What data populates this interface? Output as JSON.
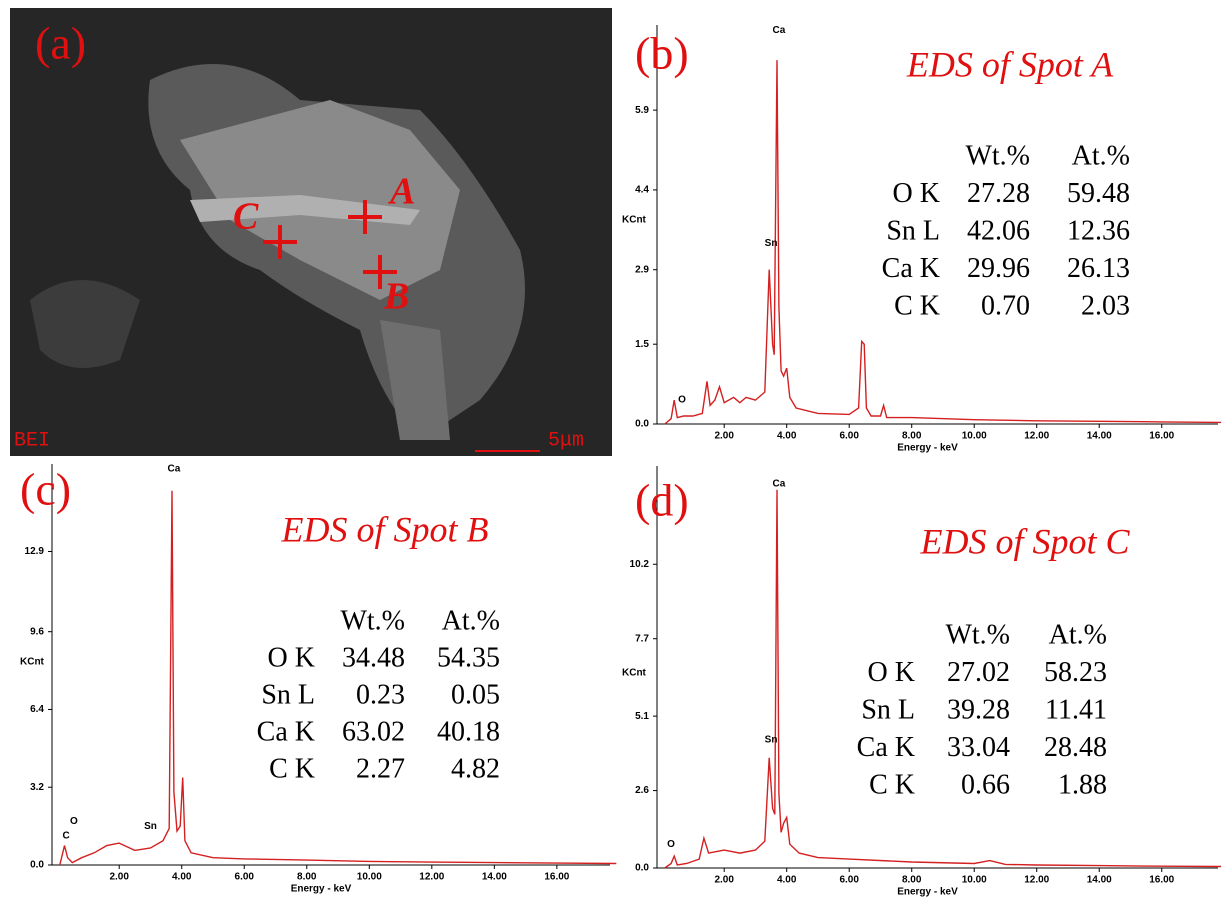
{
  "sem_image": {
    "panel_label": "(a)",
    "mode": "BEI",
    "scale_bar": "5μm",
    "spots": [
      "A",
      "B",
      "C"
    ]
  },
  "chart_data": [
    {
      "type": "line",
      "panel_label": "(b)",
      "title": "EDS of Spot A",
      "x_label": "Energy - keV",
      "y_label": "KCnt",
      "color": "#d42020",
      "xlim": [
        -0.15,
        17.8
      ],
      "ylim": [
        0,
        7.5
      ],
      "xticks": [
        {
          "value": 2,
          "label": "2.00"
        },
        {
          "value": 4,
          "label": "4.00"
        },
        {
          "value": 6,
          "label": "6.00"
        },
        {
          "value": 8,
          "label": "8.00"
        },
        {
          "value": 10,
          "label": "10.00"
        },
        {
          "value": 12,
          "label": "12.00"
        },
        {
          "value": 14,
          "label": "14.00"
        },
        {
          "value": 16,
          "label": "16.00"
        }
      ],
      "yticks": [
        {
          "value": 0,
          "label": "0.0"
        },
        1.5,
        2.9,
        4.4,
        5.9
      ],
      "x": [
        0.1,
        0.3,
        0.4,
        0.5,
        0.7,
        1.0,
        1.3,
        1.45,
        1.55,
        1.7,
        1.85,
        2.0,
        2.3,
        2.5,
        2.7,
        3.0,
        3.3,
        3.44,
        3.55,
        3.6,
        3.69,
        3.75,
        3.82,
        3.9,
        4.0,
        4.1,
        4.3,
        5.0,
        6.0,
        6.3,
        6.4,
        6.48,
        6.55,
        6.7,
        7.0,
        7.1,
        7.2,
        8,
        10,
        12,
        14,
        16,
        17.9
      ],
      "values": [
        0,
        0.1,
        0.45,
        0.12,
        0.15,
        0.15,
        0.2,
        0.8,
        0.35,
        0.45,
        0.7,
        0.4,
        0.5,
        0.4,
        0.5,
        0.45,
        0.6,
        2.9,
        1.5,
        1.3,
        6.84,
        2.2,
        1.0,
        0.9,
        1.05,
        0.5,
        0.3,
        0.2,
        0.18,
        0.3,
        1.55,
        1.5,
        0.3,
        0.15,
        0.15,
        0.35,
        0.12,
        0.12,
        0.08,
        0.06,
        0.05,
        0.04,
        0.03
      ],
      "annotations": [
        {
          "text": "Ca",
          "x": 3.75,
          "y": 7.4
        },
        {
          "text": "Sn",
          "x": 3.5,
          "y": 3.4
        },
        {
          "text": "O",
          "x": 0.65,
          "y": 0.45
        }
      ],
      "table": {
        "columns": [
          "Wt.%",
          "At.%"
        ],
        "rows": [
          [
            "O K",
            "27.28",
            "59.48"
          ],
          [
            "Sn L",
            "42.06",
            "12.36"
          ],
          [
            "Ca K",
            "29.96",
            "26.13"
          ],
          [
            "C K",
            "0.70",
            "2.03"
          ]
        ]
      }
    },
    {
      "type": "line",
      "panel_label": "(c)",
      "title": "EDS of Spot B",
      "x_label": "Energy - keV",
      "y_label": "KCnt",
      "color": "#d42020",
      "xlim": [
        -0.15,
        17.7
      ],
      "ylim": [
        0,
        16.5
      ],
      "xticks": [
        {
          "value": 2,
          "label": "2.00"
        },
        {
          "value": 4,
          "label": "4.00"
        },
        {
          "value": 6,
          "label": "6.00"
        },
        {
          "value": 8,
          "label": "8.00"
        },
        {
          "value": 10,
          "label": "10.00"
        },
        {
          "value": 12,
          "label": "12.00"
        },
        {
          "value": 14,
          "label": "14.00"
        },
        {
          "value": 16,
          "label": "16.00"
        }
      ],
      "yticks": [
        {
          "value": 0,
          "label": "0.0"
        },
        3.2,
        6.4,
        9.6,
        12.9
      ],
      "x": [
        0.1,
        0.25,
        0.35,
        0.5,
        0.8,
        1.2,
        1.6,
        2.0,
        2.5,
        3.0,
        3.4,
        3.6,
        3.69,
        3.75,
        3.85,
        3.95,
        4.03,
        4.1,
        4.3,
        5,
        6,
        8,
        10,
        12,
        14,
        16,
        17.9
      ],
      "values": [
        0,
        0.8,
        0.3,
        0.1,
        0.3,
        0.5,
        0.8,
        0.9,
        0.6,
        0.7,
        1.0,
        1.5,
        15.4,
        3.0,
        1.4,
        1.6,
        3.6,
        1.0,
        0.5,
        0.3,
        0.25,
        0.2,
        0.15,
        0.12,
        0.1,
        0.08,
        0.06
      ],
      "annotations": [
        {
          "text": "Ca",
          "x": 3.75,
          "y": 16.3
        },
        {
          "text": "Sn",
          "x": 3.0,
          "y": 1.6
        },
        {
          "text": "O",
          "x": 0.55,
          "y": 1.8
        },
        {
          "text": "C",
          "x": 0.3,
          "y": 1.2
        }
      ],
      "table": {
        "columns": [
          "Wt.%",
          "At.%"
        ],
        "rows": [
          [
            "O K",
            "34.48",
            "54.35"
          ],
          [
            "Sn L",
            "0.23",
            "0.05"
          ],
          [
            "Ca K",
            "63.02",
            "40.18"
          ],
          [
            "C K",
            "2.27",
            "4.82"
          ]
        ]
      }
    },
    {
      "type": "line",
      "panel_label": "(d)",
      "title": "EDS of Spot C",
      "x_label": "Energy - keV",
      "y_label": "KCnt",
      "color": "#d42020",
      "xlim": [
        -0.15,
        17.8
      ],
      "ylim": [
        0,
        13.5
      ],
      "xticks": [
        {
          "value": 2,
          "label": "2.00"
        },
        {
          "value": 4,
          "label": "4.00"
        },
        {
          "value": 6,
          "label": "6.00"
        },
        {
          "value": 8,
          "label": "8.00"
        },
        {
          "value": 10,
          "label": "10.00"
        },
        {
          "value": 12,
          "label": "12.00"
        },
        {
          "value": 14,
          "label": "14.00"
        },
        {
          "value": 16,
          "label": "16.00"
        }
      ],
      "yticks": [
        {
          "value": 0,
          "label": "0.0"
        },
        2.6,
        5.1,
        7.7,
        10.2
      ],
      "x": [
        0.1,
        0.3,
        0.4,
        0.5,
        0.8,
        1.2,
        1.35,
        1.5,
        2.0,
        2.5,
        3.0,
        3.3,
        3.44,
        3.55,
        3.62,
        3.69,
        3.75,
        3.82,
        3.9,
        4.0,
        4.1,
        4.4,
        5,
        6,
        8,
        10,
        10.5,
        11,
        12,
        14,
        16,
        17.9
      ],
      "values": [
        0,
        0.15,
        0.4,
        0.1,
        0.15,
        0.3,
        1.0,
        0.5,
        0.6,
        0.5,
        0.6,
        0.9,
        3.7,
        2.0,
        1.8,
        12.7,
        2.5,
        1.2,
        1.5,
        1.7,
        0.8,
        0.5,
        0.35,
        0.3,
        0.2,
        0.15,
        0.25,
        0.12,
        0.1,
        0.08,
        0.06,
        0.05
      ],
      "annotations": [
        {
          "text": "Ca",
          "x": 3.75,
          "y": 12.9
        },
        {
          "text": "Sn",
          "x": 3.5,
          "y": 4.3
        },
        {
          "text": "O",
          "x": 0.3,
          "y": 0.8
        }
      ],
      "table": {
        "columns": [
          "Wt.%",
          "At.%"
        ],
        "rows": [
          [
            "O K",
            "27.02",
            "58.23"
          ],
          [
            "Sn L",
            "39.28",
            "11.41"
          ],
          [
            "Ca K",
            "33.04",
            "28.48"
          ],
          [
            "C K",
            "0.66",
            "1.88"
          ]
        ]
      }
    }
  ]
}
